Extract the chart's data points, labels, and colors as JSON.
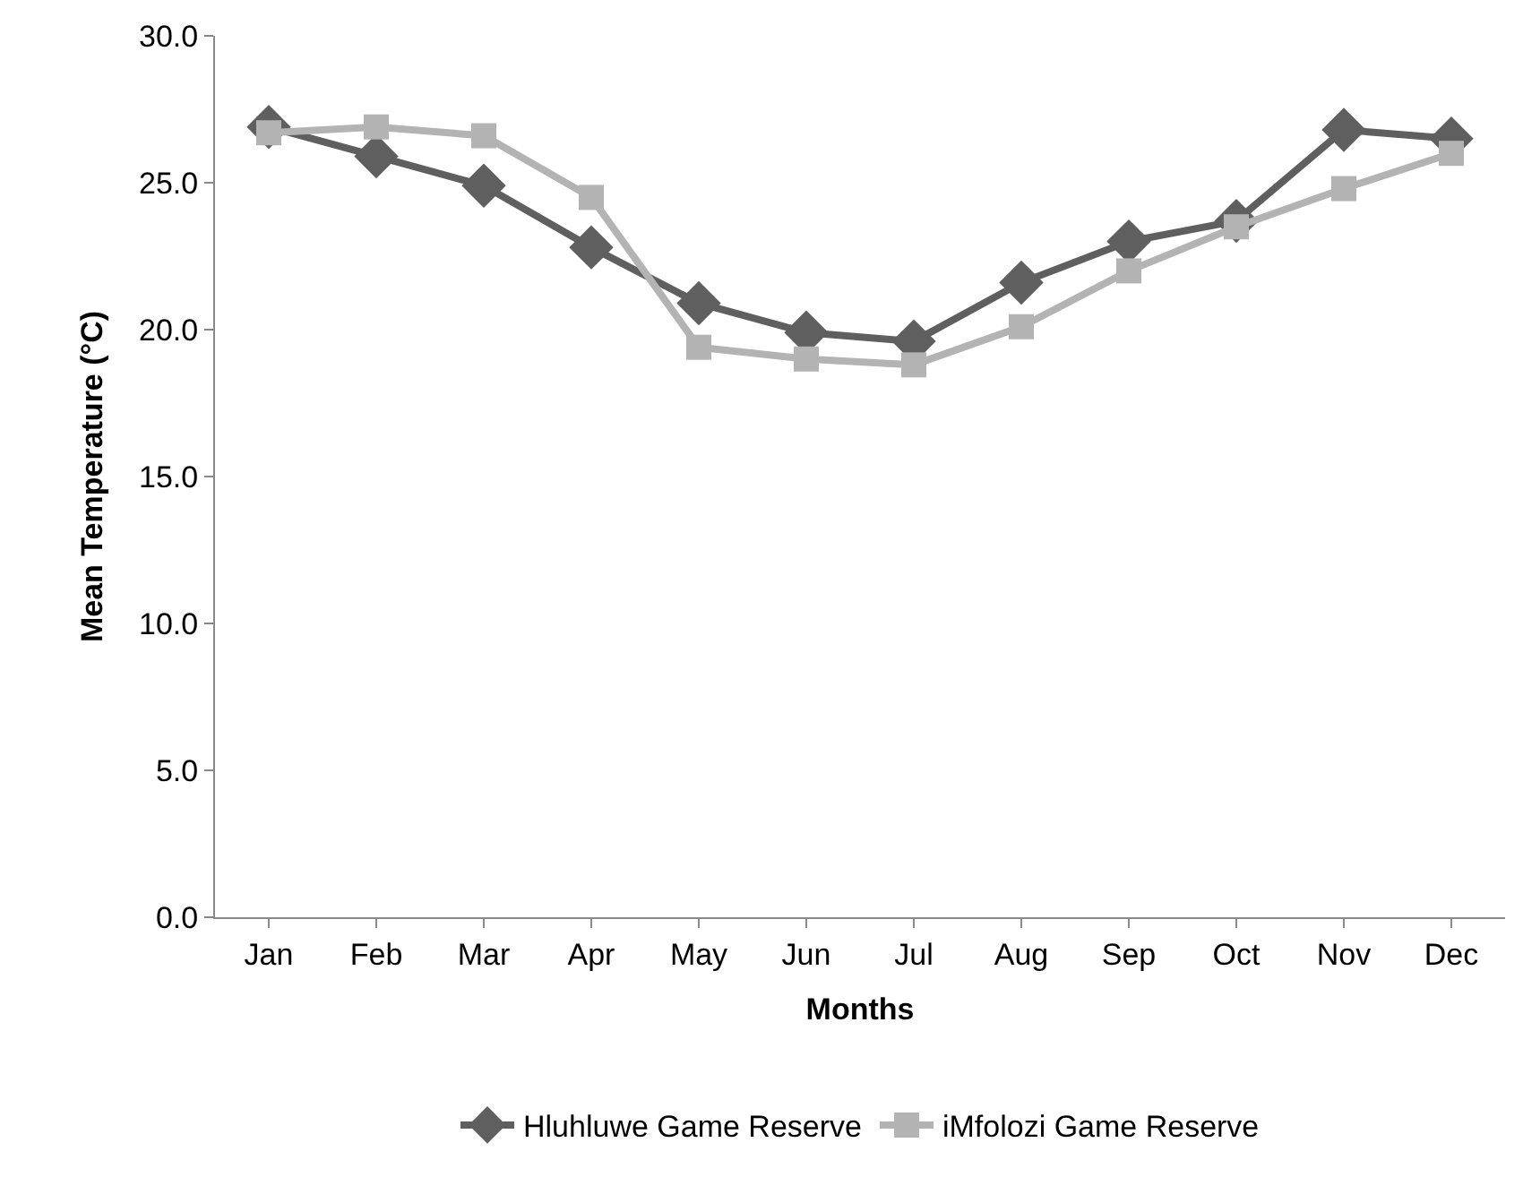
{
  "chart_data": {
    "type": "line",
    "xlabel": "Months",
    "ylabel": "Mean Temperature (°C)",
    "categories": [
      "Jan",
      "Feb",
      "Mar",
      "Apr",
      "May",
      "Jun",
      "Jul",
      "Aug",
      "Sep",
      "Oct",
      "Nov",
      "Dec"
    ],
    "series": [
      {
        "name": "Hluhluwe Game Reserve",
        "color": "#5f5f5f",
        "marker": "diamond",
        "values": [
          26.9,
          25.9,
          24.9,
          22.8,
          20.9,
          19.9,
          19.6,
          21.6,
          23.0,
          23.7,
          26.8,
          26.5
        ]
      },
      {
        "name": "iMfolozi Game Reserve",
        "color": "#b3b3b3",
        "marker": "square",
        "values": [
          26.7,
          26.9,
          26.6,
          24.5,
          19.4,
          19.0,
          18.8,
          20.1,
          22.0,
          23.5,
          24.8,
          26.0
        ]
      }
    ],
    "ylim": [
      0,
      30
    ],
    "yticks": [
      {
        "value": 0,
        "label": "0.0"
      },
      {
        "value": 5,
        "label": "5.0"
      },
      {
        "value": 10,
        "label": "10.0"
      },
      {
        "value": 15,
        "label": "15.0"
      },
      {
        "value": 20,
        "label": "20.0"
      },
      {
        "value": 25,
        "label": "25.0"
      },
      {
        "value": 30,
        "label": "30.0"
      }
    ],
    "grid": false,
    "legend": "bottom"
  }
}
